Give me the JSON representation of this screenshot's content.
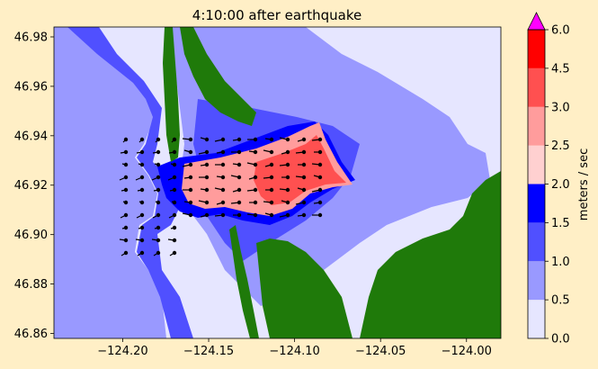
{
  "chart_data": {
    "type": "heatmap",
    "title": "4:10:00 after earthquake",
    "xlim": [
      -124.24,
      -123.98
    ],
    "ylim": [
      46.858,
      46.984
    ],
    "x_ticks": [
      {
        "value": -124.2,
        "label": "−124.20"
      },
      {
        "value": -124.15,
        "label": "−124.15"
      },
      {
        "value": -124.1,
        "label": "−124.10"
      },
      {
        "value": -124.05,
        "label": "−124.05"
      },
      {
        "value": -124.0,
        "label": "−124.00"
      }
    ],
    "y_ticks": [
      {
        "value": 46.86,
        "label": "46.86"
      },
      {
        "value": 46.88,
        "label": "46.88"
      },
      {
        "value": 46.9,
        "label": "46.90"
      },
      {
        "value": 46.92,
        "label": "46.92"
      },
      {
        "value": 46.94,
        "label": "46.94"
      },
      {
        "value": 46.96,
        "label": "46.96"
      },
      {
        "value": 46.98,
        "label": "46.98"
      }
    ],
    "colorbar": {
      "label": "meters / sec",
      "bounds": [
        0.0,
        0.5,
        1.0,
        1.5,
        2.0,
        2.5,
        3.0,
        4.5,
        6.0
      ],
      "tick_labels": [
        "0.0",
        "0.5",
        "1.0",
        "1.5",
        "2.0",
        "2.5",
        "3.0",
        "4.5",
        "6.0"
      ],
      "colors": [
        "#e6e6ff",
        "#9999ff",
        "#5050ff",
        "#0000ff",
        "#ffd0d0",
        "#ff9c9c",
        "#ff5050",
        "#ff0000"
      ],
      "extend_color": "#ff00ff"
    },
    "land_color": "#1f7a0a",
    "velocity_arrows_color": "#000000"
  }
}
